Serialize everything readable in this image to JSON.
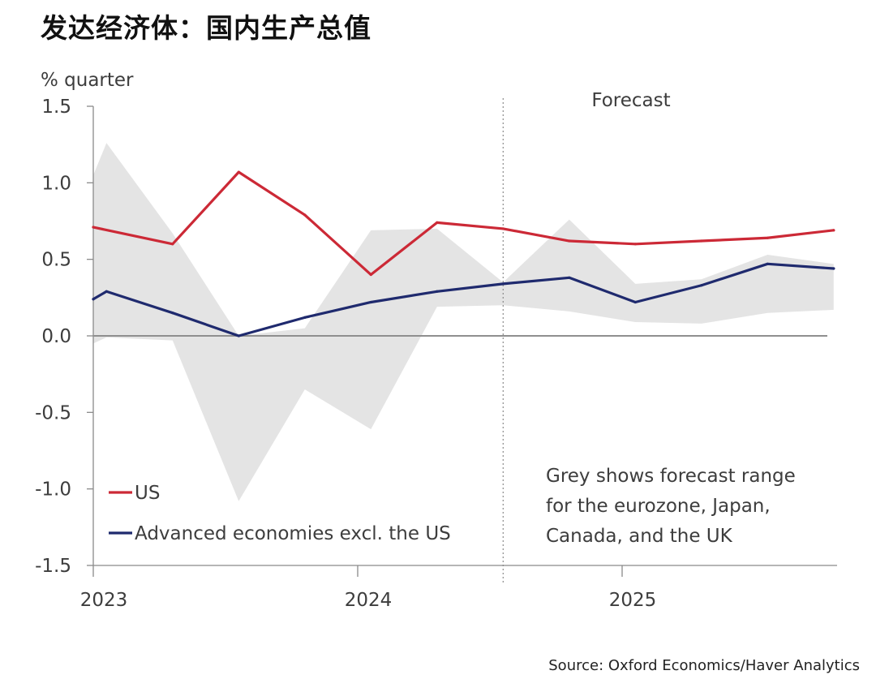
{
  "title": "发达经济体：国内生产总值",
  "source": "Source: Oxford Economics/Haver Analytics",
  "chart_data": {
    "type": "line",
    "ylabel": "% quarter",
    "ylim": [
      -1.5,
      1.5
    ],
    "yticks": [
      "1.5",
      "1.0",
      "0.5",
      "0.0",
      "-0.5",
      "-1.0",
      "-1.5"
    ],
    "ytick_values": [
      1.5,
      1.0,
      0.5,
      0.0,
      -0.5,
      -1.0,
      -1.5
    ],
    "x_labels": [
      "2023",
      "2024",
      "2025"
    ],
    "x_label_positions": [
      0,
      4,
      8
    ],
    "x": [
      0,
      0.2,
      1.2,
      2.2,
      3.2,
      4.2,
      5.2,
      6.2,
      7.2,
      8.2,
      9.2,
      10.2,
      11.2
    ],
    "forecast_start": 6.2,
    "forecast_label": "Forecast",
    "series": [
      {
        "name": "US",
        "color": "#cc2936",
        "x": [
          0,
          1.2,
          2.2,
          3.2,
          4.2,
          5.2,
          6.2,
          7.2,
          8.2,
          9.2,
          10.2,
          11.2
        ],
        "values": [
          0.71,
          0.6,
          1.07,
          0.79,
          0.4,
          0.74,
          0.7,
          0.62,
          0.6,
          0.62,
          0.64,
          0.69
        ]
      },
      {
        "name": "Advanced  economies excl. the US",
        "color": "#1f2a6e",
        "x": [
          0,
          0.2,
          1.2,
          2.2,
          3.2,
          4.2,
          5.2,
          6.2,
          7.2,
          8.2,
          9.2,
          10.2,
          11.2
        ],
        "values": [
          0.24,
          0.29,
          0.15,
          0.0,
          0.12,
          0.22,
          0.29,
          0.34,
          0.38,
          0.22,
          0.33,
          0.47,
          0.44
        ]
      }
    ],
    "range": {
      "name": "Grey shows forecast range for the eurozone, Japan, Canada, and the UK",
      "color": "#e4e4e4",
      "x": [
        0,
        0.2,
        1.2,
        2.2,
        3.2,
        4.2,
        5.2,
        6.2,
        7.2,
        8.2,
        9.2,
        10.2,
        11.2
      ],
      "upper": [
        1.05,
        1.26,
        0.67,
        0.0,
        0.05,
        0.69,
        0.7,
        0.35,
        0.76,
        0.34,
        0.37,
        0.53,
        0.47
      ],
      "lower": [
        -0.05,
        -0.01,
        -0.03,
        -1.08,
        -0.35,
        -0.61,
        0.19,
        0.2,
        0.16,
        0.09,
        0.08,
        0.15,
        0.17
      ]
    },
    "legend": [
      {
        "label": "US",
        "color": "#cc2936"
      },
      {
        "label": "Advanced  economies excl. the US",
        "color": "#1f2a6e"
      }
    ],
    "annotation_lines": [
      "Grey shows forecast range",
      "for the eurozone, Japan,",
      "Canada, and the UK"
    ]
  }
}
